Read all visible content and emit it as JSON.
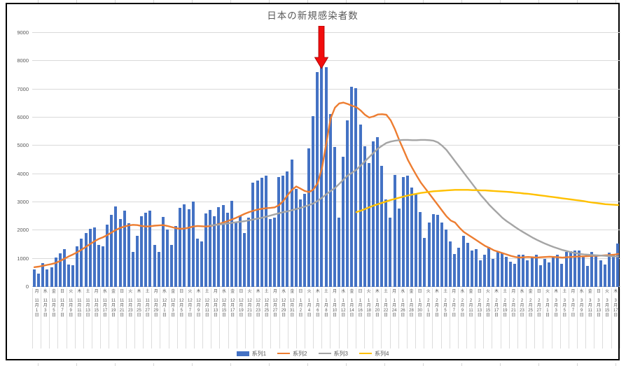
{
  "sheet": {
    "background": "#ffffff",
    "grid_color": "#d6d6d6"
  },
  "chart": {
    "title": "日本の新規感染者数",
    "border_color": "#000000",
    "annotation": {
      "shape": "down-arrow",
      "fill": "#f20d0d",
      "outline": "#a00000"
    },
    "axis_text_color": "#595959",
    "gridline_color": "#d9d9d9"
  },
  "chart_data": {
    "type": "bar+line",
    "title": "日本の新規感染者数",
    "ylim": [
      0,
      9000
    ],
    "y_ticks": [
      0,
      1000,
      2000,
      3000,
      4000,
      5000,
      6000,
      7000,
      8000,
      9000
    ],
    "n_points": 137,
    "x_label_interval": 2,
    "legend_position": "bottom",
    "x_labels": [
      [
        "月",
        "11",
        "月",
        "1",
        "日"
      ],
      [
        "水",
        "11",
        "月",
        "3",
        "日"
      ],
      [
        "金",
        "11",
        "月",
        "5",
        "日"
      ],
      [
        "日",
        "11",
        "月",
        "7",
        "日"
      ],
      [
        "火",
        "11",
        "月",
        "9",
        "日"
      ],
      [
        "木",
        "11",
        "月",
        "11",
        "日"
      ],
      [
        "土",
        "11",
        "月",
        "13",
        "日"
      ],
      [
        "月",
        "11",
        "月",
        "15",
        "日"
      ],
      [
        "水",
        "11",
        "月",
        "17",
        "日"
      ],
      [
        "金",
        "11",
        "月",
        "19",
        "日"
      ],
      [
        "日",
        "11",
        "月",
        "21",
        "日"
      ],
      [
        "火",
        "11",
        "月",
        "23",
        "日"
      ],
      [
        "木",
        "11",
        "月",
        "25",
        "日"
      ],
      [
        "土",
        "11",
        "月",
        "27",
        "日"
      ],
      [
        "月",
        "11",
        "月",
        "29",
        "日"
      ],
      [
        "水",
        "12",
        "月",
        "1",
        "日"
      ],
      [
        "金",
        "12",
        "月",
        "3",
        "日"
      ],
      [
        "日",
        "12",
        "月",
        "5",
        "日"
      ],
      [
        "火",
        "12",
        "月",
        "7",
        "日"
      ],
      [
        "木",
        "12",
        "月",
        "9",
        "日"
      ],
      [
        "土",
        "12",
        "月",
        "11",
        "日"
      ],
      [
        "月",
        "12",
        "月",
        "13",
        "日"
      ],
      [
        "水",
        "12",
        "月",
        "15",
        "日"
      ],
      [
        "金",
        "12",
        "月",
        "17",
        "日"
      ],
      [
        "日",
        "12",
        "月",
        "19",
        "日"
      ],
      [
        "火",
        "12",
        "月",
        "21",
        "日"
      ],
      [
        "木",
        "12",
        "月",
        "23",
        "日"
      ],
      [
        "土",
        "12",
        "月",
        "25",
        "日"
      ],
      [
        "月",
        "12",
        "月",
        "27",
        "日"
      ],
      [
        "水",
        "12",
        "月",
        "29",
        "日"
      ],
      [
        "金",
        "12",
        "月",
        "31",
        "日"
      ],
      [
        "日",
        "1",
        "月",
        "2",
        "日"
      ],
      [
        "火",
        "1",
        "月",
        "4",
        "日"
      ],
      [
        "木",
        "1",
        "月",
        "6",
        "日"
      ],
      [
        "土",
        "1",
        "月",
        "8",
        "日"
      ],
      [
        "月",
        "1",
        "月",
        "10",
        "日"
      ],
      [
        "水",
        "1",
        "月",
        "12",
        "日"
      ],
      [
        "金",
        "1",
        "月",
        "14",
        "日"
      ],
      [
        "日",
        "1",
        "月",
        "16",
        "日"
      ],
      [
        "火",
        "1",
        "月",
        "18",
        "日"
      ],
      [
        "木",
        "1",
        "月",
        "20",
        "日"
      ],
      [
        "土",
        "1",
        "月",
        "22",
        "日"
      ],
      [
        "月",
        "1",
        "月",
        "24",
        "日"
      ],
      [
        "水",
        "1",
        "月",
        "26",
        "日"
      ],
      [
        "金",
        "1",
        "月",
        "28",
        "日"
      ],
      [
        "日",
        "1",
        "月",
        "30",
        "日"
      ],
      [
        "火",
        "2",
        "月",
        "1",
        "日"
      ],
      [
        "木",
        "2",
        "月",
        "3",
        "日"
      ],
      [
        "土",
        "2",
        "月",
        "5",
        "日"
      ],
      [
        "月",
        "2",
        "月",
        "7",
        "日"
      ],
      [
        "水",
        "2",
        "月",
        "9",
        "日"
      ],
      [
        "金",
        "2",
        "月",
        "11",
        "日"
      ],
      [
        "日",
        "2",
        "月",
        "13",
        "日"
      ],
      [
        "火",
        "2",
        "月",
        "15",
        "日"
      ],
      [
        "木",
        "2",
        "月",
        "17",
        "日"
      ],
      [
        "土",
        "2",
        "月",
        "19",
        "日"
      ],
      [
        "月",
        "2",
        "月",
        "21",
        "日"
      ],
      [
        "水",
        "2",
        "月",
        "23",
        "日"
      ],
      [
        "金",
        "2",
        "月",
        "25",
        "日"
      ],
      [
        "日",
        "2",
        "月",
        "27",
        "日"
      ],
      [
        "火",
        "3",
        "月",
        "1",
        "日"
      ],
      [
        "木",
        "3",
        "月",
        "3",
        "日"
      ],
      [
        "土",
        "3",
        "月",
        "5",
        "日"
      ],
      [
        "月",
        "3",
        "月",
        "7",
        "日"
      ],
      [
        "水",
        "3",
        "月",
        "9",
        "日"
      ],
      [
        "金",
        "3",
        "月",
        "11",
        "日"
      ],
      [
        "日",
        "3",
        "月",
        "13",
        "日"
      ],
      [
        "火",
        "3",
        "月",
        "15",
        "日"
      ],
      [
        "木",
        "3",
        "月",
        "17",
        "日"
      ]
    ],
    "series": [
      {
        "name": "系列1",
        "type": "bar",
        "color": "#4472C4",
        "values": [
          620,
          470,
          850,
          620,
          700,
          1050,
          1200,
          1350,
          800,
          760,
          1450,
          1700,
          1900,
          2060,
          2100,
          1500,
          1450,
          2210,
          2560,
          2850,
          2410,
          2700,
          2250,
          1250,
          1800,
          2500,
          2620,
          2700,
          1500,
          1250,
          2480,
          2030,
          1500,
          2160,
          2800,
          2930,
          2750,
          3020,
          1720,
          1620,
          2600,
          2720,
          2500,
          2820,
          2900,
          2620,
          3050,
          2300,
          2500,
          1900,
          2450,
          3700,
          3760,
          3870,
          3950,
          2400,
          2450,
          3900,
          3950,
          4100,
          4520,
          3470,
          3100,
          3300,
          4920,
          6040,
          7620,
          7890,
          7790,
          6130,
          4950,
          2450,
          4600,
          5900,
          7100,
          7050,
          5750,
          4980,
          4400,
          5150,
          5300,
          4300,
          3100,
          2450,
          3970,
          2770,
          3900,
          3950,
          3520,
          3270,
          2650,
          1740,
          2280,
          2590,
          2560,
          2290,
          2030,
          1610,
          1160,
          1400,
          1810,
          1560,
          1280,
          1330,
          950,
          1150,
          1420,
          990,
          1230,
          1190,
          1060,
          900,
          810,
          1130,
          1140,
          950,
          1060,
          1130,
          780,
          980,
          880,
          1060,
          1140,
          820,
          1230,
          1260,
          1300,
          1280,
          1060,
          750,
          1240,
          1110,
          950,
          800,
          1210,
          1130,
          1540
        ]
      },
      {
        "name": "系列2",
        "type": "line",
        "color": "#ED7D31",
        "values": [
          700,
          720,
          750,
          780,
          810,
          850,
          920,
          1000,
          1080,
          1150,
          1230,
          1320,
          1420,
          1520,
          1620,
          1700,
          1760,
          1840,
          1930,
          2020,
          2090,
          2140,
          2180,
          2200,
          2190,
          2160,
          2140,
          2150,
          2170,
          2180,
          2190,
          2160,
          2120,
          2080,
          2060,
          2070,
          2100,
          2140,
          2160,
          2150,
          2140,
          2160,
          2190,
          2230,
          2280,
          2330,
          2390,
          2450,
          2520,
          2590,
          2650,
          2700,
          2740,
          2770,
          2790,
          2800,
          2820,
          2900,
          3050,
          3250,
          3440,
          3560,
          3480,
          3400,
          3360,
          3450,
          3680,
          4220,
          5090,
          5960,
          6350,
          6500,
          6530,
          6480,
          6420,
          6370,
          6250,
          6100,
          6000,
          6040,
          6110,
          6120,
          6100,
          5900,
          5580,
          5200,
          4850,
          4500,
          4220,
          3950,
          3700,
          3500,
          3300,
          3100,
          2900,
          2700,
          2500,
          2350,
          2280,
          2100,
          1950,
          1850,
          1750,
          1650,
          1550,
          1450,
          1380,
          1300,
          1250,
          1200,
          1150,
          1100,
          1060,
          1040,
          1050,
          1060,
          1050,
          1040,
          1050,
          1060,
          1070,
          1060,
          1050,
          1040,
          1050,
          1060,
          1070,
          1080,
          1080,
          1090,
          1100,
          1100,
          1110,
          1120,
          1130,
          1140,
          1170
        ]
      },
      {
        "name": "系列3",
        "type": "line",
        "color": "#A5A5A5",
        "values": [
          null,
          null,
          null,
          null,
          null,
          null,
          null,
          null,
          null,
          null,
          null,
          null,
          null,
          null,
          null,
          null,
          null,
          null,
          null,
          null,
          null,
          null,
          null,
          null,
          null,
          null,
          null,
          null,
          null,
          null,
          null,
          null,
          null,
          null,
          null,
          null,
          null,
          null,
          null,
          null,
          null,
          2180,
          2190,
          2210,
          2230,
          2250,
          2270,
          2290,
          2310,
          2330,
          2360,
          2390,
          2420,
          2450,
          2490,
          2530,
          2570,
          2610,
          2650,
          2680,
          2720,
          2760,
          2800,
          2850,
          2900,
          2960,
          3050,
          3160,
          3280,
          3400,
          3500,
          3650,
          3800,
          3950,
          4050,
          4150,
          4300,
          4450,
          4600,
          4750,
          4900,
          5000,
          5100,
          5150,
          5180,
          5200,
          5210,
          5210,
          5200,
          5200,
          5210,
          5210,
          5200,
          5180,
          5120,
          5000,
          4850,
          4650,
          4450,
          4250,
          4050,
          3850,
          3650,
          3450,
          3250,
          3080,
          2900,
          2750,
          2600,
          2450,
          2330,
          2230,
          2120,
          2020,
          1930,
          1840,
          1750,
          1670,
          1600,
          1530,
          1470,
          1410,
          1360,
          1310,
          1270,
          1230,
          1200,
          1170,
          1150,
          1140,
          1130,
          1120,
          1110,
          1100,
          1090,
          1080,
          1080
        ]
      },
      {
        "name": "系列4",
        "type": "line",
        "color": "#FFC000",
        "values": [
          null,
          null,
          null,
          null,
          null,
          null,
          null,
          null,
          null,
          null,
          null,
          null,
          null,
          null,
          null,
          null,
          null,
          null,
          null,
          null,
          null,
          null,
          null,
          null,
          null,
          null,
          null,
          null,
          null,
          null,
          null,
          null,
          null,
          null,
          null,
          null,
          null,
          null,
          null,
          null,
          null,
          null,
          null,
          null,
          null,
          null,
          null,
          null,
          null,
          null,
          null,
          null,
          null,
          null,
          null,
          null,
          null,
          null,
          null,
          null,
          null,
          null,
          null,
          null,
          null,
          null,
          null,
          null,
          null,
          null,
          null,
          null,
          null,
          null,
          null,
          2650,
          2700,
          2760,
          2820,
          2880,
          2930,
          2980,
          3030,
          3080,
          3120,
          3160,
          3200,
          3240,
          3270,
          3300,
          3330,
          3350,
          3370,
          3390,
          3400,
          3410,
          3420,
          3430,
          3440,
          3440,
          3440,
          3440,
          3430,
          3430,
          3420,
          3420,
          3410,
          3400,
          3390,
          3380,
          3370,
          3360,
          3340,
          3330,
          3310,
          3300,
          3280,
          3260,
          3240,
          3220,
          3200,
          3180,
          3160,
          3140,
          3120,
          3100,
          3080,
          3060,
          3040,
          3010,
          2990,
          2970,
          2950,
          2930,
          2920,
          2910,
          2900
        ]
      }
    ]
  }
}
